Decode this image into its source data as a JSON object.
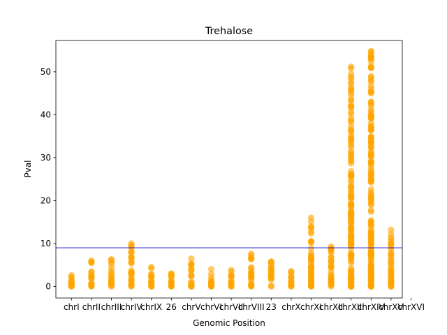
{
  "chart_data": {
    "type": "scatter",
    "title": "Trehalose",
    "xlabel": "Genomic Position",
    "ylabel": "Pval",
    "categories": [
      "chrI",
      "chrII",
      "chrIII",
      "chrIV",
      "chrIX",
      "26",
      "chrV",
      "chrVI",
      "chrVII",
      "chrVIII",
      "23",
      "chrX",
      "chrXI",
      "chrXII",
      "chrXIII",
      "chrXIV",
      "chrXV",
      "chrXVI"
    ],
    "category_max": [
      2.6,
      6.0,
      6.3,
      10.0,
      4.5,
      3.0,
      6.5,
      4.0,
      3.8,
      7.6,
      5.8,
      3.5,
      16.0,
      9.3,
      51.2,
      54.8,
      13.2,
      0
    ],
    "yticks": [
      0,
      10,
      20,
      30,
      40,
      50
    ],
    "ylim": [
      -2.7,
      57.3
    ],
    "threshold": 9.0,
    "marker_color": "#ffa500",
    "marker_alpha": 0.6,
    "threshold_color": "#0000cc",
    "grid": false,
    "legend": "none"
  }
}
